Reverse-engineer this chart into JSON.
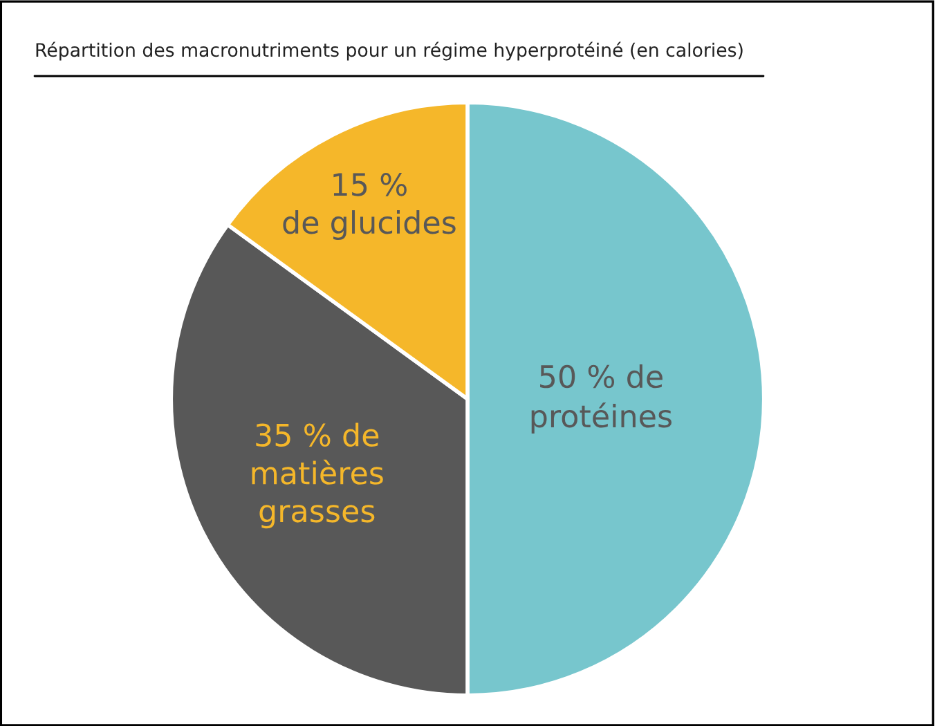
{
  "chart_data": {
    "type": "pie",
    "title": "Répartition des macronutriments pour un régime hyperprotéiné (en calories)",
    "categories": [
      "50 % de\nprotéines",
      "35 % de\nmatières\ngrasses",
      "15 %\nde glucides"
    ],
    "values": [
      50,
      35,
      15
    ],
    "colors": [
      "#77c6cd",
      "#585858",
      "#f5b72a"
    ]
  }
}
